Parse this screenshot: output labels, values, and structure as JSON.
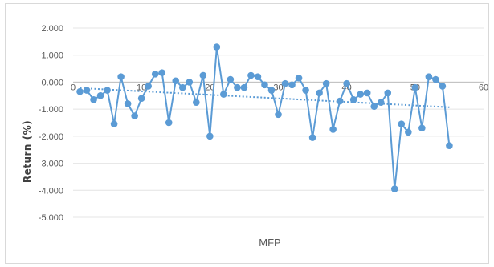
{
  "chart_data": {
    "type": "line",
    "title": "",
    "xlabel": "MFP",
    "ylabel": "Return (%)",
    "xlim": [
      0,
      60
    ],
    "ylim": [
      -5,
      2
    ],
    "xticks": [
      0,
      10,
      20,
      30,
      40,
      50,
      60
    ],
    "yticks": [
      2,
      1,
      0,
      -1,
      -2,
      -3,
      -4,
      -5
    ],
    "ytick_labels": [
      "2.000",
      "1.000",
      "0.000",
      "-1.000",
      "-2.000",
      "-3.000",
      "-4.000",
      "-5.000"
    ],
    "xtick_labels": [
      "0",
      "10",
      "20",
      "30",
      "40",
      "50",
      "60"
    ],
    "grid": "horizontal",
    "legend": "none",
    "series_color": "#5b9bd5",
    "trendline": {
      "type": "linear",
      "style": "dotted",
      "start": [
        1,
        -0.22
      ],
      "end": [
        55,
        -0.93
      ]
    },
    "series": [
      {
        "x": [
          1,
          2,
          3,
          4,
          5,
          6,
          7,
          8,
          9,
          10,
          11,
          12,
          13,
          14,
          15,
          16,
          17,
          18,
          19,
          20,
          21,
          22,
          23,
          24,
          25,
          26,
          27,
          28,
          29,
          30,
          31,
          32,
          33,
          34,
          35,
          36,
          37,
          38,
          39,
          40,
          41,
          42,
          43,
          44,
          45,
          46,
          47,
          48,
          49,
          50,
          51,
          52,
          53,
          54,
          55
        ],
        "values": [
          -0.35,
          -0.3,
          -0.65,
          -0.5,
          -0.3,
          -1.55,
          0.2,
          -0.8,
          -1.25,
          -0.6,
          -0.15,
          0.3,
          0.35,
          -1.5,
          0.05,
          -0.2,
          0.0,
          -0.75,
          0.25,
          -2.0,
          1.3,
          -0.45,
          0.1,
          -0.2,
          -0.2,
          0.25,
          0.2,
          -0.1,
          -0.3,
          -1.2,
          -0.05,
          -0.1,
          0.15,
          -0.3,
          -2.05,
          -0.4,
          -0.05,
          -1.75,
          -0.7,
          -0.05,
          -0.65,
          -0.45,
          -0.4,
          -0.9,
          -0.75,
          -0.4,
          -3.95,
          -1.55,
          -1.85,
          -0.2,
          -1.7,
          0.2,
          0.1,
          -0.15,
          -2.35
        ]
      }
    ]
  }
}
